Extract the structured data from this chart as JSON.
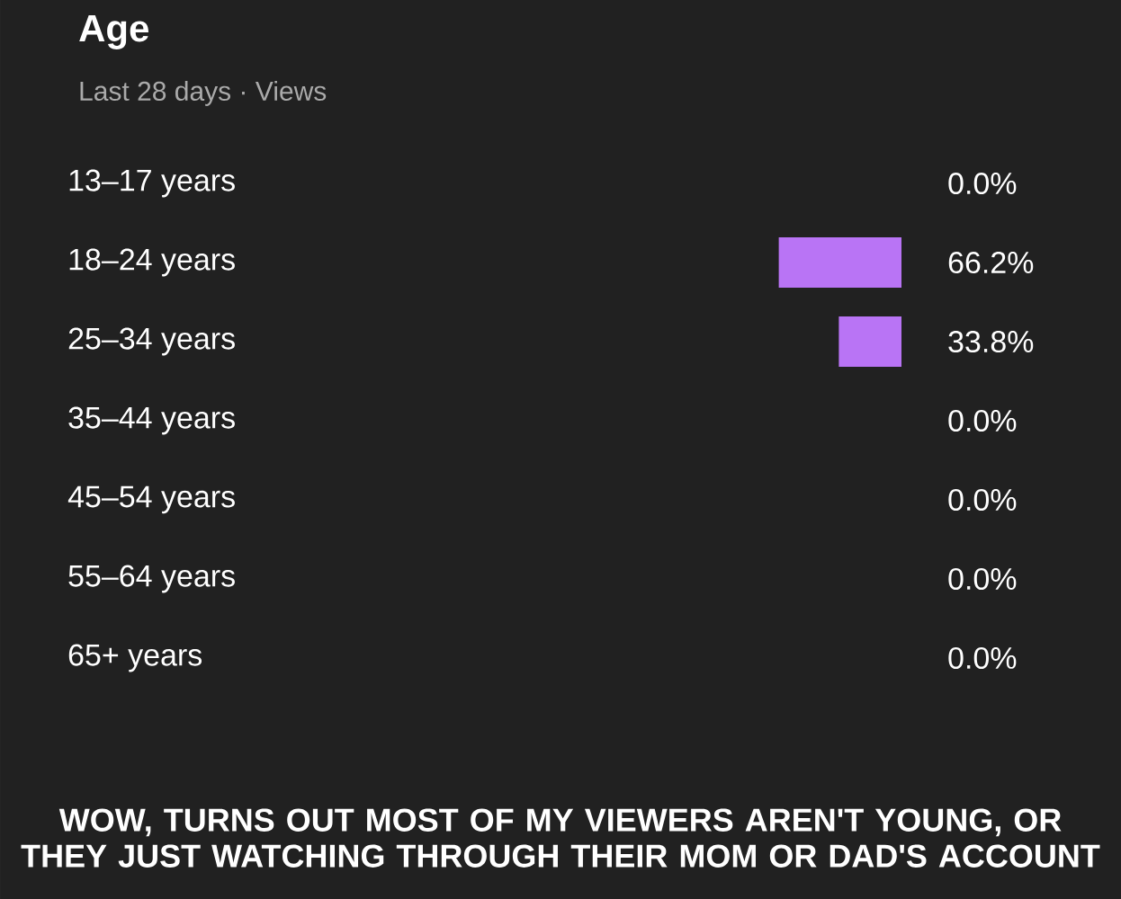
{
  "chart_data": {
    "type": "bar",
    "orientation": "horizontal",
    "title": "Age",
    "subtitle": "Last 28 days · Views",
    "categories": [
      "13–17 years",
      "18–24 years",
      "25–34 years",
      "35–44 years",
      "45–54 years",
      "55–64 years",
      "65+ years"
    ],
    "values": [
      0.0,
      66.2,
      33.8,
      0.0,
      0.0,
      0.0,
      0.0
    ],
    "value_labels": [
      "0.0%",
      "66.2%",
      "33.8%",
      "0.0%",
      "0.0%",
      "0.0%",
      "0.0%"
    ],
    "color": "#b974f5",
    "annotations": [
      "WOW, TURNS OUT MOST OF MY VIEWERS AREN'T YOUNG, OR THEY JUST WATCHING THROUGH THEIR MOM OR DAD'S ACCOUNT"
    ]
  }
}
